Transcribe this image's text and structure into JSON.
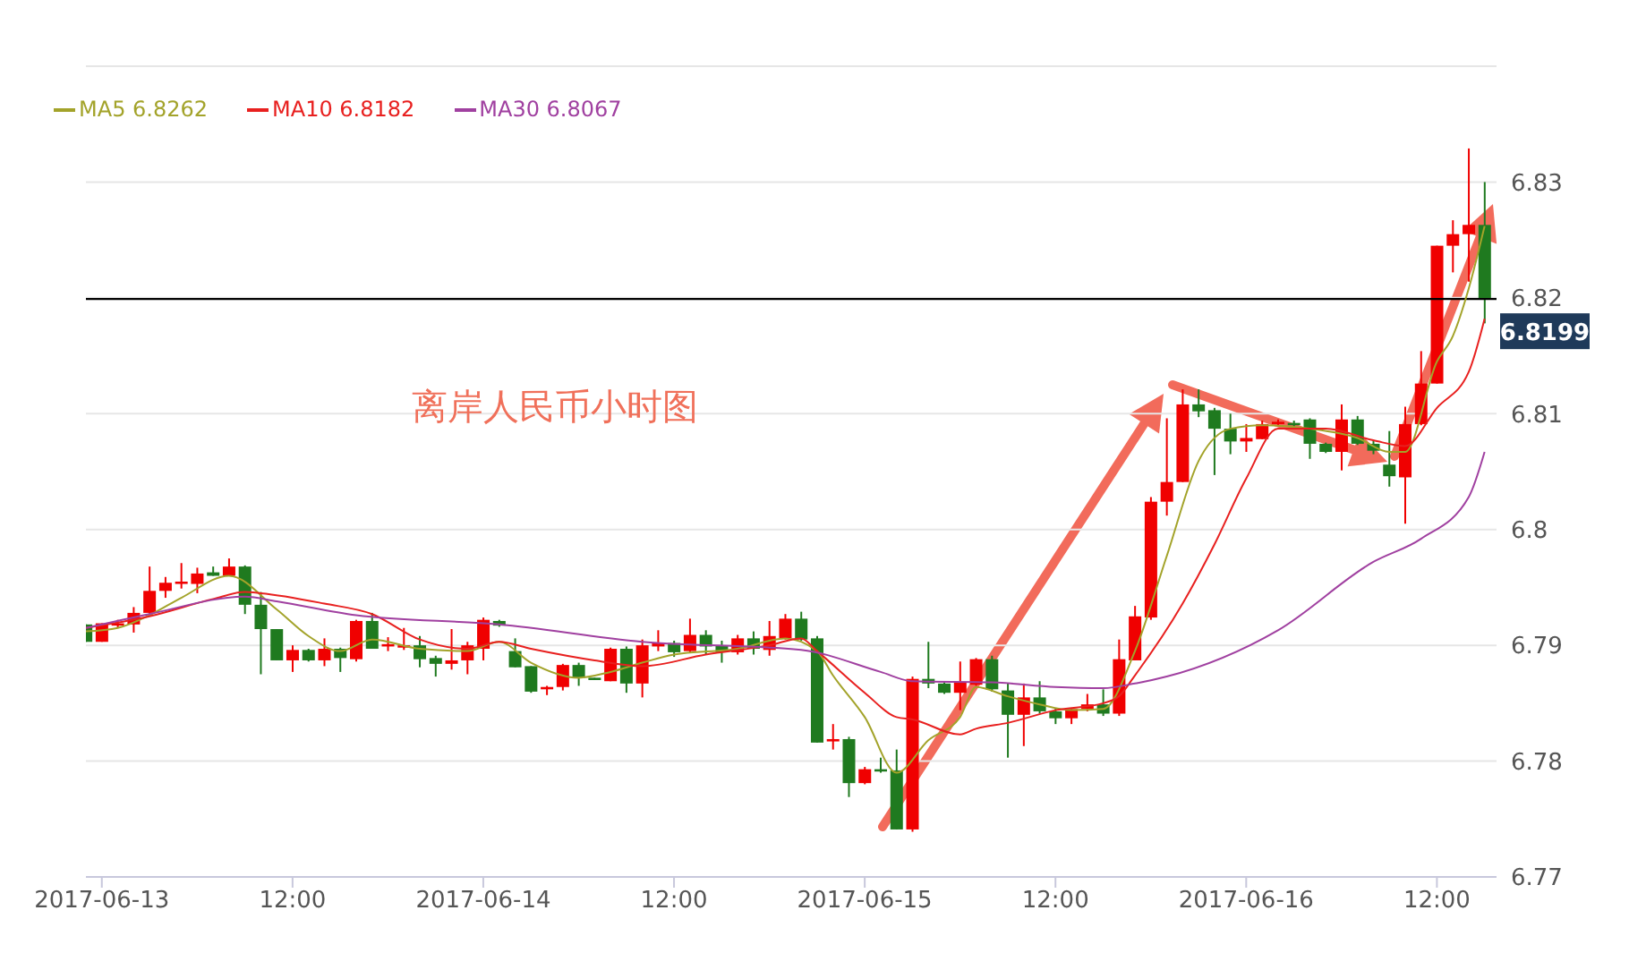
{
  "chart_data": {
    "type": "candlestick",
    "annotations": [
      "离岸人民币小时图"
    ],
    "x": [
      "2017-06-12T23:00",
      "2017-06-13T00:00",
      "2017-06-13T01:00",
      "2017-06-13T02:00",
      "2017-06-13T03:00",
      "2017-06-13T04:00",
      "2017-06-13T05:00",
      "2017-06-13T06:00",
      "2017-06-13T07:00",
      "2017-06-13T08:00",
      "2017-06-13T09:00",
      "2017-06-13T10:00",
      "2017-06-13T11:00",
      "2017-06-13T12:00",
      "2017-06-13T13:00",
      "2017-06-13T14:00",
      "2017-06-13T15:00",
      "2017-06-13T16:00",
      "2017-06-13T17:00",
      "2017-06-13T18:00",
      "2017-06-13T19:00",
      "2017-06-13T20:00",
      "2017-06-13T21:00",
      "2017-06-13T22:00",
      "2017-06-13T23:00",
      "2017-06-14T00:00",
      "2017-06-14T01:00",
      "2017-06-14T02:00",
      "2017-06-14T03:00",
      "2017-06-14T04:00",
      "2017-06-14T05:00",
      "2017-06-14T06:00",
      "2017-06-14T07:00",
      "2017-06-14T08:00",
      "2017-06-14T09:00",
      "2017-06-14T10:00",
      "2017-06-14T11:00",
      "2017-06-14T12:00",
      "2017-06-14T13:00",
      "2017-06-14T14:00",
      "2017-06-14T15:00",
      "2017-06-14T16:00",
      "2017-06-14T17:00",
      "2017-06-14T18:00",
      "2017-06-14T19:00",
      "2017-06-14T20:00",
      "2017-06-14T21:00",
      "2017-06-14T22:00",
      "2017-06-14T23:00",
      "2017-06-15T00:00",
      "2017-06-15T01:00",
      "2017-06-15T02:00",
      "2017-06-15T03:00",
      "2017-06-15T04:00",
      "2017-06-15T05:00",
      "2017-06-15T06:00",
      "2017-06-15T07:00",
      "2017-06-15T08:00",
      "2017-06-15T09:00",
      "2017-06-15T10:00",
      "2017-06-15T11:00",
      "2017-06-15T12:00",
      "2017-06-15T13:00",
      "2017-06-15T14:00",
      "2017-06-15T15:00",
      "2017-06-15T16:00",
      "2017-06-15T17:00",
      "2017-06-15T18:00",
      "2017-06-15T19:00",
      "2017-06-15T20:00",
      "2017-06-15T21:00",
      "2017-06-15T22:00",
      "2017-06-15T23:00",
      "2017-06-16T00:00",
      "2017-06-16T01:00",
      "2017-06-16T02:00",
      "2017-06-16T03:00",
      "2017-06-16T04:00",
      "2017-06-16T05:00",
      "2017-06-16T06:00",
      "2017-06-16T07:00",
      "2017-06-16T08:00",
      "2017-06-16T09:00",
      "2017-06-16T10:00",
      "2017-06-16T11:00",
      "2017-06-16T12:00",
      "2017-06-16T13:00",
      "2017-06-16T14:00",
      "2017-06-16T15:00"
    ],
    "ohlc": [
      [
        6.7918,
        6.7918,
        6.7903,
        6.7903
      ],
      [
        6.7903,
        6.7919,
        6.7903,
        6.7919
      ],
      [
        6.7917,
        6.7922,
        6.7915,
        6.7919
      ],
      [
        6.7918,
        6.7933,
        6.7911,
        6.7928
      ],
      [
        6.7928,
        6.7968,
        6.7925,
        6.7947
      ],
      [
        6.7947,
        6.7959,
        6.7941,
        6.7954
      ],
      [
        6.7953,
        6.7971,
        6.7949,
        6.7955
      ],
      [
        6.7953,
        6.7967,
        6.7945,
        6.7962
      ],
      [
        6.7963,
        6.7968,
        6.796,
        6.796
      ],
      [
        6.796,
        6.7975,
        6.796,
        6.7968
      ],
      [
        6.7968,
        6.7969,
        6.7927,
        6.7935
      ],
      [
        6.7935,
        6.7946,
        6.7875,
        6.7914
      ],
      [
        6.7914,
        6.7914,
        6.7887,
        6.7887
      ],
      [
        6.7887,
        6.79,
        6.7877,
        6.7896
      ],
      [
        6.7896,
        6.7897,
        6.7886,
        6.7887
      ],
      [
        6.7887,
        6.7906,
        6.7882,
        6.7897
      ],
      [
        6.7897,
        6.7898,
        6.7877,
        6.7889
      ],
      [
        6.7888,
        6.7922,
        6.7886,
        6.7921
      ],
      [
        6.7921,
        6.7928,
        6.7897,
        6.7897
      ],
      [
        6.7899,
        6.7907,
        6.7895,
        6.7901
      ],
      [
        6.7898,
        6.7915,
        6.7896,
        6.79
      ],
      [
        6.79,
        6.7908,
        6.7881,
        6.7888
      ],
      [
        6.7889,
        6.7891,
        6.7873,
        6.7884
      ],
      [
        6.7884,
        6.7914,
        6.7879,
        6.7887
      ],
      [
        6.7887,
        6.7903,
        6.7875,
        6.79
      ],
      [
        6.7897,
        6.7924,
        6.7887,
        6.7922
      ],
      [
        6.7921,
        6.7922,
        6.7916,
        6.7917
      ],
      [
        6.7895,
        6.7906,
        6.7881,
        6.7881
      ],
      [
        6.7882,
        6.7882,
        6.7859,
        6.786
      ],
      [
        6.7862,
        6.7865,
        6.7857,
        6.7864
      ],
      [
        6.7864,
        6.7884,
        6.7861,
        6.7883
      ],
      [
        6.7883,
        6.7885,
        6.7865,
        6.7872
      ],
      [
        6.7872,
        6.7872,
        6.787,
        6.787
      ],
      [
        6.7869,
        6.7898,
        6.7869,
        6.7897
      ],
      [
        6.7897,
        6.7899,
        6.7859,
        6.7867
      ],
      [
        6.7867,
        6.7905,
        6.7855,
        6.79
      ],
      [
        6.7899,
        6.7913,
        6.7895,
        6.7902
      ],
      [
        6.7902,
        6.7904,
        6.789,
        6.7894
      ],
      [
        6.7895,
        6.7923,
        6.7894,
        6.7909
      ],
      [
        6.7909,
        6.7913,
        6.7892,
        6.7899
      ],
      [
        6.79,
        6.7904,
        6.7885,
        6.7894
      ],
      [
        6.7894,
        6.7909,
        6.7892,
        6.7906
      ],
      [
        6.7906,
        6.7912,
        6.7892,
        6.7897
      ],
      [
        6.7896,
        6.7921,
        6.7891,
        6.7908
      ],
      [
        6.7906,
        6.7927,
        6.7905,
        6.7923
      ],
      [
        6.7923,
        6.7929,
        6.7904,
        6.7905
      ],
      [
        6.7906,
        6.7908,
        6.7816,
        6.7816
      ],
      [
        6.7817,
        6.7832,
        6.781,
        6.7819
      ],
      [
        6.7819,
        6.7821,
        6.7769,
        6.7781
      ],
      [
        6.7781,
        6.7795,
        6.778,
        6.7793
      ],
      [
        6.7793,
        6.7803,
        6.779,
        6.7791
      ],
      [
        6.7792,
        6.781,
        6.7741,
        6.7741
      ],
      [
        6.7741,
        6.7873,
        6.7739,
        6.7871
      ],
      [
        6.7871,
        6.7903,
        6.7863,
        6.7867
      ],
      [
        6.7867,
        6.7868,
        6.7858,
        6.7859
      ],
      [
        6.7859,
        6.7886,
        6.7844,
        6.7868
      ],
      [
        6.7866,
        6.7889,
        6.7865,
        6.7888
      ],
      [
        6.7888,
        6.7891,
        6.786,
        6.7862
      ],
      [
        6.7861,
        6.7867,
        6.7803,
        6.784
      ],
      [
        6.784,
        6.7867,
        6.7813,
        6.7855
      ],
      [
        6.7855,
        6.7869,
        6.7841,
        6.7843
      ],
      [
        6.7843,
        6.7846,
        6.7832,
        6.7837
      ],
      [
        6.7837,
        6.7846,
        6.7832,
        6.7845
      ],
      [
        6.7845,
        6.7858,
        6.7843,
        6.7849
      ],
      [
        6.7849,
        6.7862,
        6.7839,
        6.7841
      ],
      [
        6.7841,
        6.7905,
        6.7839,
        6.7888
      ],
      [
        6.7887,
        6.7934,
        6.7887,
        6.7925
      ],
      [
        6.7924,
        6.8028,
        6.7922,
        6.8024
      ],
      [
        6.8024,
        6.8096,
        6.8012,
        6.8041
      ],
      [
        6.8041,
        6.8121,
        6.8041,
        6.8108
      ],
      [
        6.8108,
        6.8121,
        6.8097,
        6.8102
      ],
      [
        6.8103,
        6.8105,
        6.8047,
        6.8087
      ],
      [
        6.8087,
        6.81,
        6.8065,
        6.8076
      ],
      [
        6.8076,
        6.8091,
        6.8067,
        6.8079
      ],
      [
        6.8078,
        6.8094,
        6.8078,
        6.8091
      ],
      [
        6.8091,
        6.8095,
        6.8089,
        6.8093
      ],
      [
        6.8092,
        6.8094,
        6.8088,
        6.809
      ],
      [
        6.8095,
        6.8096,
        6.8061,
        6.8074
      ],
      [
        6.8074,
        6.8075,
        6.8066,
        6.8067
      ],
      [
        6.8067,
        6.8108,
        6.8051,
        6.8095
      ],
      [
        6.8095,
        6.8098,
        6.8073,
        6.8074
      ],
      [
        6.8074,
        6.8077,
        6.8065,
        6.8068
      ],
      [
        6.8056,
        6.8085,
        6.8037,
        6.8046
      ],
      [
        6.8045,
        6.8106,
        6.8005,
        6.8091
      ],
      [
        6.8091,
        6.8154,
        6.809,
        6.8126
      ],
      [
        6.8126,
        6.8245,
        6.8126,
        6.8245
      ],
      [
        6.8245,
        6.8267,
        6.8222,
        6.8255
      ],
      [
        6.8255,
        6.8329,
        6.8214,
        6.8263
      ],
      [
        6.8263,
        6.83,
        6.8178,
        6.8199
      ]
    ],
    "colors": [
      "#1f7a1f",
      "#f00000",
      "#f00000",
      "#f00000",
      "#f00000",
      "#f00000",
      "#f00000",
      "#f00000",
      "#1f7a1f",
      "#f00000",
      "#1f7a1f",
      "#1f7a1f",
      "#1f7a1f",
      "#f00000",
      "#1f7a1f",
      "#f00000",
      "#1f7a1f",
      "#f00000",
      "#1f7a1f",
      "#f00000",
      "#f00000",
      "#1f7a1f",
      "#1f7a1f",
      "#f00000",
      "#f00000",
      "#f00000",
      "#1f7a1f",
      "#1f7a1f",
      "#1f7a1f",
      "#f00000",
      "#f00000",
      "#1f7a1f",
      "#1f7a1f",
      "#f00000",
      "#1f7a1f",
      "#f00000",
      "#f00000",
      "#1f7a1f",
      "#f00000",
      "#1f7a1f",
      "#1f7a1f",
      "#f00000",
      "#1f7a1f",
      "#f00000",
      "#f00000",
      "#1f7a1f",
      "#1f7a1f",
      "#f00000",
      "#1f7a1f",
      "#f00000",
      "#1f7a1f",
      "#1f7a1f",
      "#f00000",
      "#1f7a1f",
      "#1f7a1f",
      "#f00000",
      "#f00000",
      "#1f7a1f",
      "#1f7a1f",
      "#f00000",
      "#1f7a1f",
      "#1f7a1f",
      "#f00000",
      "#f00000",
      "#1f7a1f",
      "#f00000",
      "#f00000",
      "#f00000",
      "#f00000",
      "#f00000",
      "#1f7a1f",
      "#1f7a1f",
      "#1f7a1f",
      "#f00000",
      "#f00000",
      "#f00000",
      "#1f7a1f",
      "#1f7a1f",
      "#1f7a1f",
      "#f00000",
      "#1f7a1f",
      "#1f7a1f",
      "#1f7a1f",
      "#f00000",
      "#f00000",
      "#f00000",
      "#f00000",
      "#f00000",
      "#1f7a1f"
    ],
    "series": [
      {
        "name": "MA5 6.8262",
        "type": "line",
        "color": "#a3a32a",
        "x": [
          "2017-06-12T23:00",
          "2017-06-13T01:00",
          "2017-06-13T03:00",
          "2017-06-13T05:00",
          "2017-06-13T08:00",
          "2017-06-13T11:00",
          "2017-06-13T13:00",
          "2017-06-13T15:00",
          "2017-06-13T17:00",
          "2017-06-13T20:00",
          "2017-06-13T23:00",
          "2017-06-14T01:00",
          "2017-06-14T03:00",
          "2017-06-14T06:00",
          "2017-06-14T08:00",
          "2017-06-14T10:00",
          "2017-06-14T12:00",
          "2017-06-14T16:00",
          "2017-06-14T19:00",
          "2017-06-14T21:00",
          "2017-06-14T22:00",
          "2017-06-15T00:00",
          "2017-06-15T02:00",
          "2017-06-15T04:00",
          "2017-06-15T06:00",
          "2017-06-15T07:00",
          "2017-06-15T09:00",
          "2017-06-15T11:00",
          "2017-06-15T13:00",
          "2017-06-15T15:00",
          "2017-06-15T17:00",
          "2017-06-15T19:00",
          "2017-06-15T21:00",
          "2017-06-15T23:00",
          "2017-06-16T01:00",
          "2017-06-16T04:00",
          "2017-06-16T07:00",
          "2017-06-16T09:00",
          "2017-06-16T10:00",
          "2017-06-16T12:00",
          "2017-06-16T13:00",
          "2017-06-16T14:00",
          "2017-06-16T15:00"
        ],
        "values": [
          6.7912,
          6.7915,
          6.7926,
          6.7941,
          6.796,
          6.7931,
          6.7908,
          6.7895,
          6.7905,
          6.7897,
          6.7895,
          6.7903,
          6.7885,
          6.7872,
          6.7877,
          6.7885,
          6.7892,
          6.7897,
          6.7906,
          6.7895,
          6.7874,
          6.7838,
          6.779,
          6.7818,
          6.7838,
          6.7864,
          6.7856,
          6.7849,
          6.7844,
          6.7845,
          6.7895,
          6.7977,
          6.8059,
          6.8087,
          6.809,
          6.8087,
          6.8079,
          6.8067,
          6.8067,
          6.8145,
          6.8167,
          6.8208,
          6.8262
        ]
      },
      {
        "name": "MA10 6.8182",
        "type": "line",
        "color": "#e8201f",
        "x": [
          "2017-06-12T23:00",
          "2017-06-13T03:00",
          "2017-06-13T07:00",
          "2017-06-13T09:00",
          "2017-06-13T10:00",
          "2017-06-13T14:00",
          "2017-06-13T17:00",
          "2017-06-13T20:00",
          "2017-06-13T23:00",
          "2017-06-14T01:00",
          "2017-06-14T03:00",
          "2017-06-14T07:00",
          "2017-06-14T10:00",
          "2017-06-14T14:00",
          "2017-06-14T18:00",
          "2017-06-14T20:00",
          "2017-06-14T21:00",
          "2017-06-15T00:00",
          "2017-06-15T02:00",
          "2017-06-15T03:00",
          "2017-06-15T06:00",
          "2017-06-15T07:00",
          "2017-06-15T09:00",
          "2017-06-15T12:00",
          "2017-06-15T15:00",
          "2017-06-15T16:00",
          "2017-06-15T17:00",
          "2017-06-15T20:00",
          "2017-06-15T22:00",
          "2017-06-16T00:00",
          "2017-06-16T02:00",
          "2017-06-16T05:00",
          "2017-06-16T08:00",
          "2017-06-16T10:00",
          "2017-06-16T12:00",
          "2017-06-16T14:00",
          "2017-06-16T15:00"
        ],
        "values": [
          6.7915,
          6.7925,
          6.794,
          6.7946,
          6.7945,
          6.7936,
          6.7927,
          6.7905,
          6.7897,
          6.7903,
          6.7897,
          6.7887,
          6.7882,
          6.7892,
          6.79,
          6.7906,
          6.7895,
          6.7859,
          6.7838,
          6.7836,
          6.7823,
          6.7828,
          6.7833,
          6.7844,
          6.785,
          6.7856,
          6.7874,
          6.7936,
          6.7987,
          6.8044,
          6.8087,
          6.8087,
          6.8077,
          6.8072,
          6.8105,
          6.8136,
          6.8182
        ]
      },
      {
        "name": "MA30 6.8067",
        "type": "line",
        "color": "#a040a0",
        "x": [
          "2017-06-12T23:00",
          "2017-06-13T03:00",
          "2017-06-13T09:00",
          "2017-06-13T11:00",
          "2017-06-13T16:00",
          "2017-06-14T01:00",
          "2017-06-14T10:00",
          "2017-06-14T20:00",
          "2017-06-15T01:00",
          "2017-06-15T03:00",
          "2017-06-15T08:00",
          "2017-06-15T12:00",
          "2017-06-15T15:00",
          "2017-06-15T17:00",
          "2017-06-15T19:00",
          "2017-06-16T02:00",
          "2017-06-16T08:00",
          "2017-06-16T11:00",
          "2017-06-16T14:00",
          "2017-06-16T15:00"
        ],
        "values": [
          6.7915,
          6.7927,
          6.7942,
          6.7938,
          6.7926,
          6.7918,
          6.7903,
          6.7896,
          6.7877,
          6.7869,
          6.7868,
          6.7864,
          6.7863,
          6.7867,
          6.7873,
          6.7913,
          6.7972,
          6.7992,
          6.8028,
          6.8067
        ]
      }
    ],
    "xlim": [
      "2017-06-12T23:00",
      "2017-06-16T15:45"
    ],
    "xticks": [
      {
        "value": "2017-06-13T00:00",
        "label": "2017-06-13"
      },
      {
        "value": "2017-06-13T12:00",
        "label": "12:00"
      },
      {
        "value": "2017-06-14T00:00",
        "label": "2017-06-14"
      },
      {
        "value": "2017-06-14T12:00",
        "label": "12:00"
      },
      {
        "value": "2017-06-15T00:00",
        "label": "2017-06-15"
      },
      {
        "value": "2017-06-15T12:00",
        "label": "12:00"
      },
      {
        "value": "2017-06-16T00:00",
        "label": "2017-06-16"
      },
      {
        "value": "2017-06-16T12:00",
        "label": "12:00"
      }
    ],
    "ylim": [
      6.77,
      6.84
    ],
    "yticks": [
      6.77,
      6.78,
      6.79,
      6.8,
      6.81,
      6.82,
      6.83,
      {
        "value": 6.84,
        "label": null
      }
    ],
    "ref_lines": [
      {
        "axis": "y",
        "value": 6.8199,
        "label": "6.8199",
        "color": "#000000"
      }
    ],
    "grid": "y",
    "legend": "top left"
  }
}
